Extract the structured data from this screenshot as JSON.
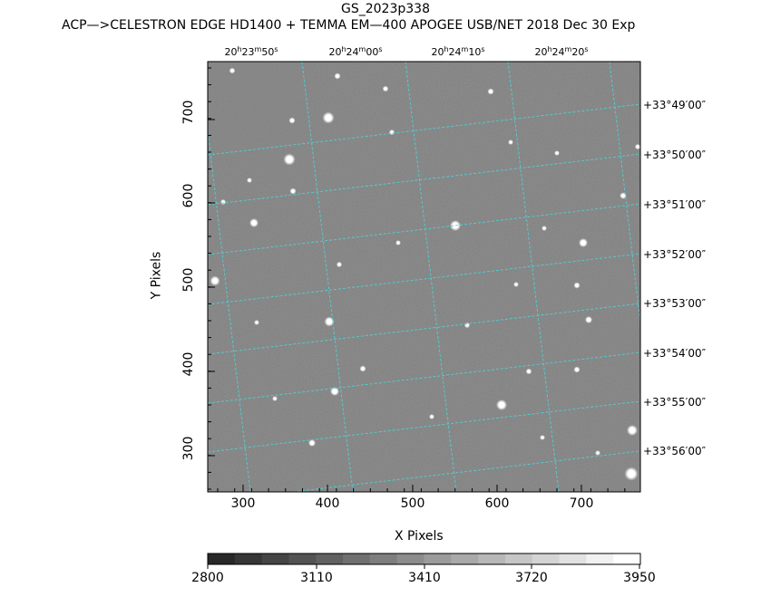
{
  "title": "GS_2023p338",
  "subtitle": "ACP—>CELESTRON EDGE HD1400 + TEMMA EM—400 APOGEE USB/NET   2018 Dec 30    Exp",
  "axes": {
    "xlabel": "X Pixels",
    "ylabel": "Y Pixels",
    "x_ticks": [
      "300",
      "400",
      "500",
      "600",
      "700"
    ],
    "y_ticks": [
      "300",
      "400",
      "500",
      "600",
      "700"
    ],
    "ra_ticks": [
      {
        "h": "20",
        "m": "23",
        "s": "50"
      },
      {
        "h": "20",
        "m": "24",
        "s": "00"
      },
      {
        "h": "20",
        "m": "24",
        "s": "10"
      },
      {
        "h": "20",
        "m": "24",
        "s": "20"
      }
    ],
    "dec_ticks": [
      "+33°49′00″",
      "+33°50′00″",
      "+33°51′00″",
      "+33°52′00″",
      "+33°53′00″",
      "+33°54′00″",
      "+33°55′00″",
      "+33°56′00″"
    ]
  },
  "colorbar": {
    "labels": [
      "2800",
      "3110",
      "3410",
      "3720",
      "3950"
    ]
  },
  "colors": {
    "grid": "#4fd0d8",
    "background_gray": "#7c7c7c"
  }
}
